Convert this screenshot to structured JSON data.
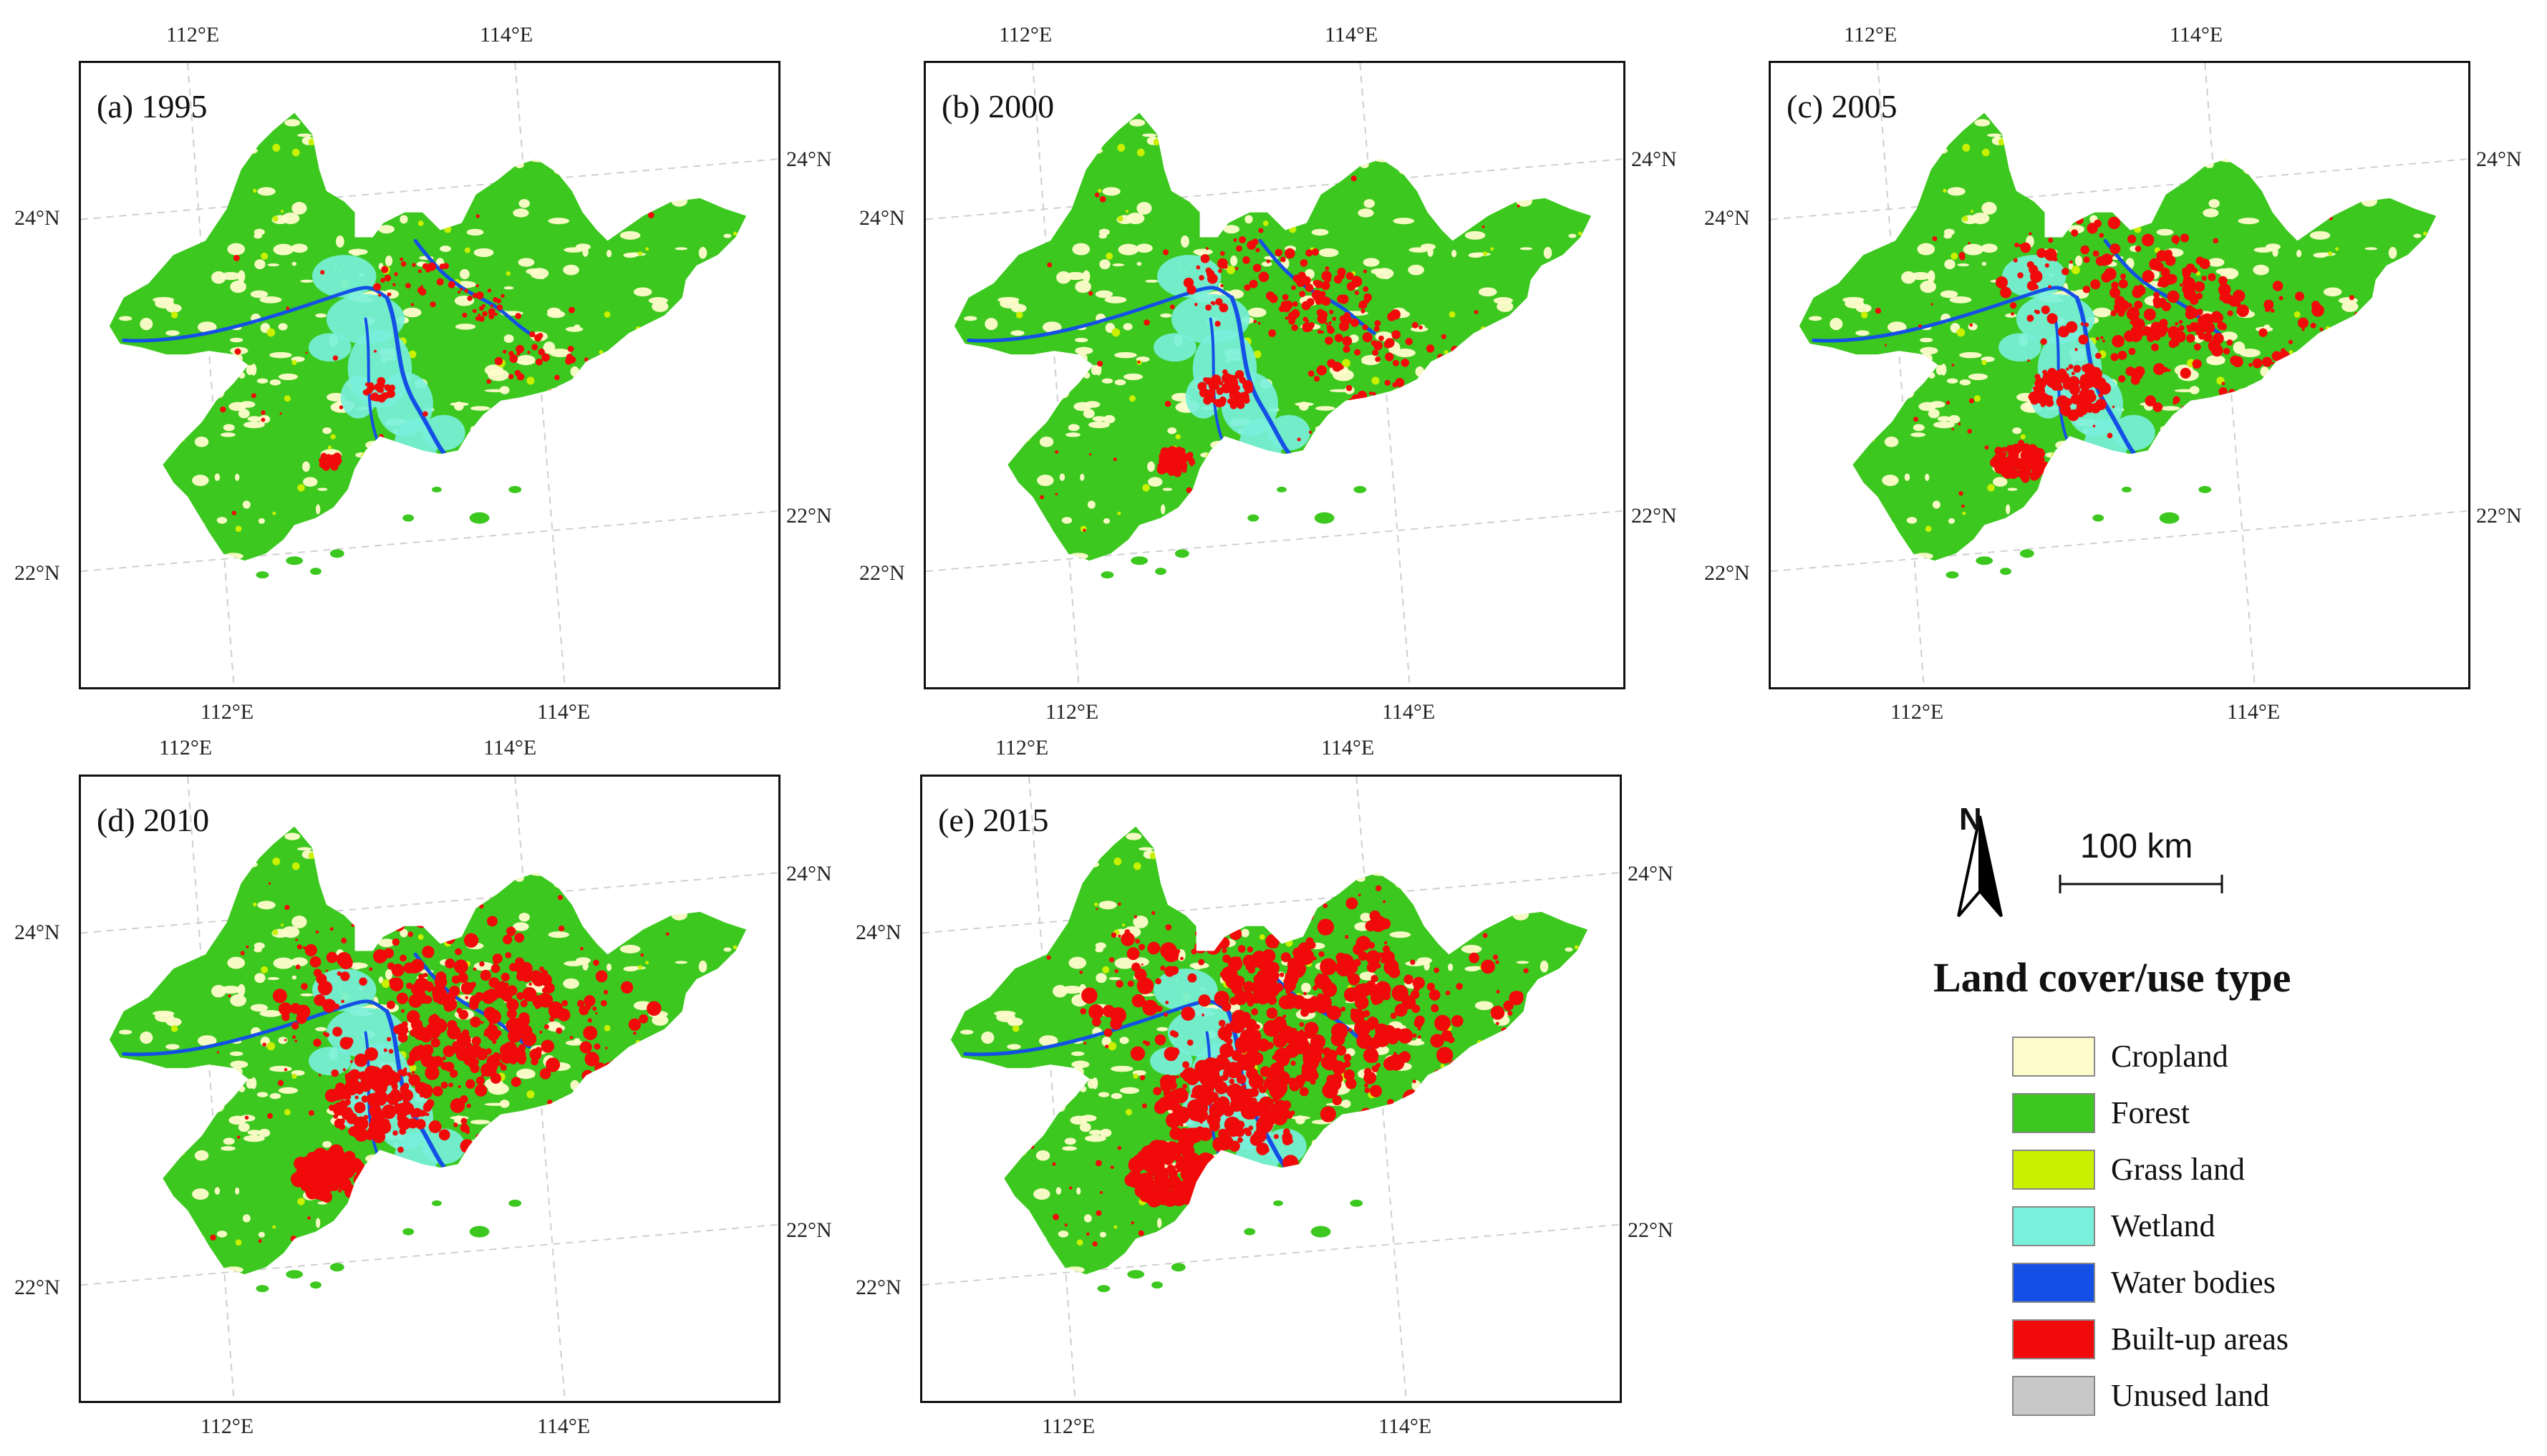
{
  "panels": [
    {
      "label": "(a) 1995",
      "level": 0
    },
    {
      "label": "(b) 2000",
      "level": 1
    },
    {
      "label": "(c) 2005",
      "level": 2
    },
    {
      "label": "(d) 2010",
      "level": 3
    },
    {
      "label": "(e) 2015",
      "level": 4
    }
  ],
  "coords": {
    "lon112": "112°E",
    "lon114": "114°E",
    "lat24": "24°N",
    "lat22": "22°N"
  },
  "legend": {
    "north": "N",
    "scale": "100 km",
    "title": "Land cover/use type",
    "items": [
      {
        "label": "Cropland",
        "color": "#fffccc"
      },
      {
        "label": "Forest",
        "color": "#3cc81e"
      },
      {
        "label": "Grass land",
        "color": "#c8f000"
      },
      {
        "label": "Wetland",
        "color": "#78f0dc"
      },
      {
        "label": "Water bodies",
        "color": "#1450e6"
      },
      {
        "label": "Built-up areas",
        "color": "#f00a0a"
      },
      {
        "label": "Unused land",
        "color": "#c8c8c8"
      }
    ]
  }
}
